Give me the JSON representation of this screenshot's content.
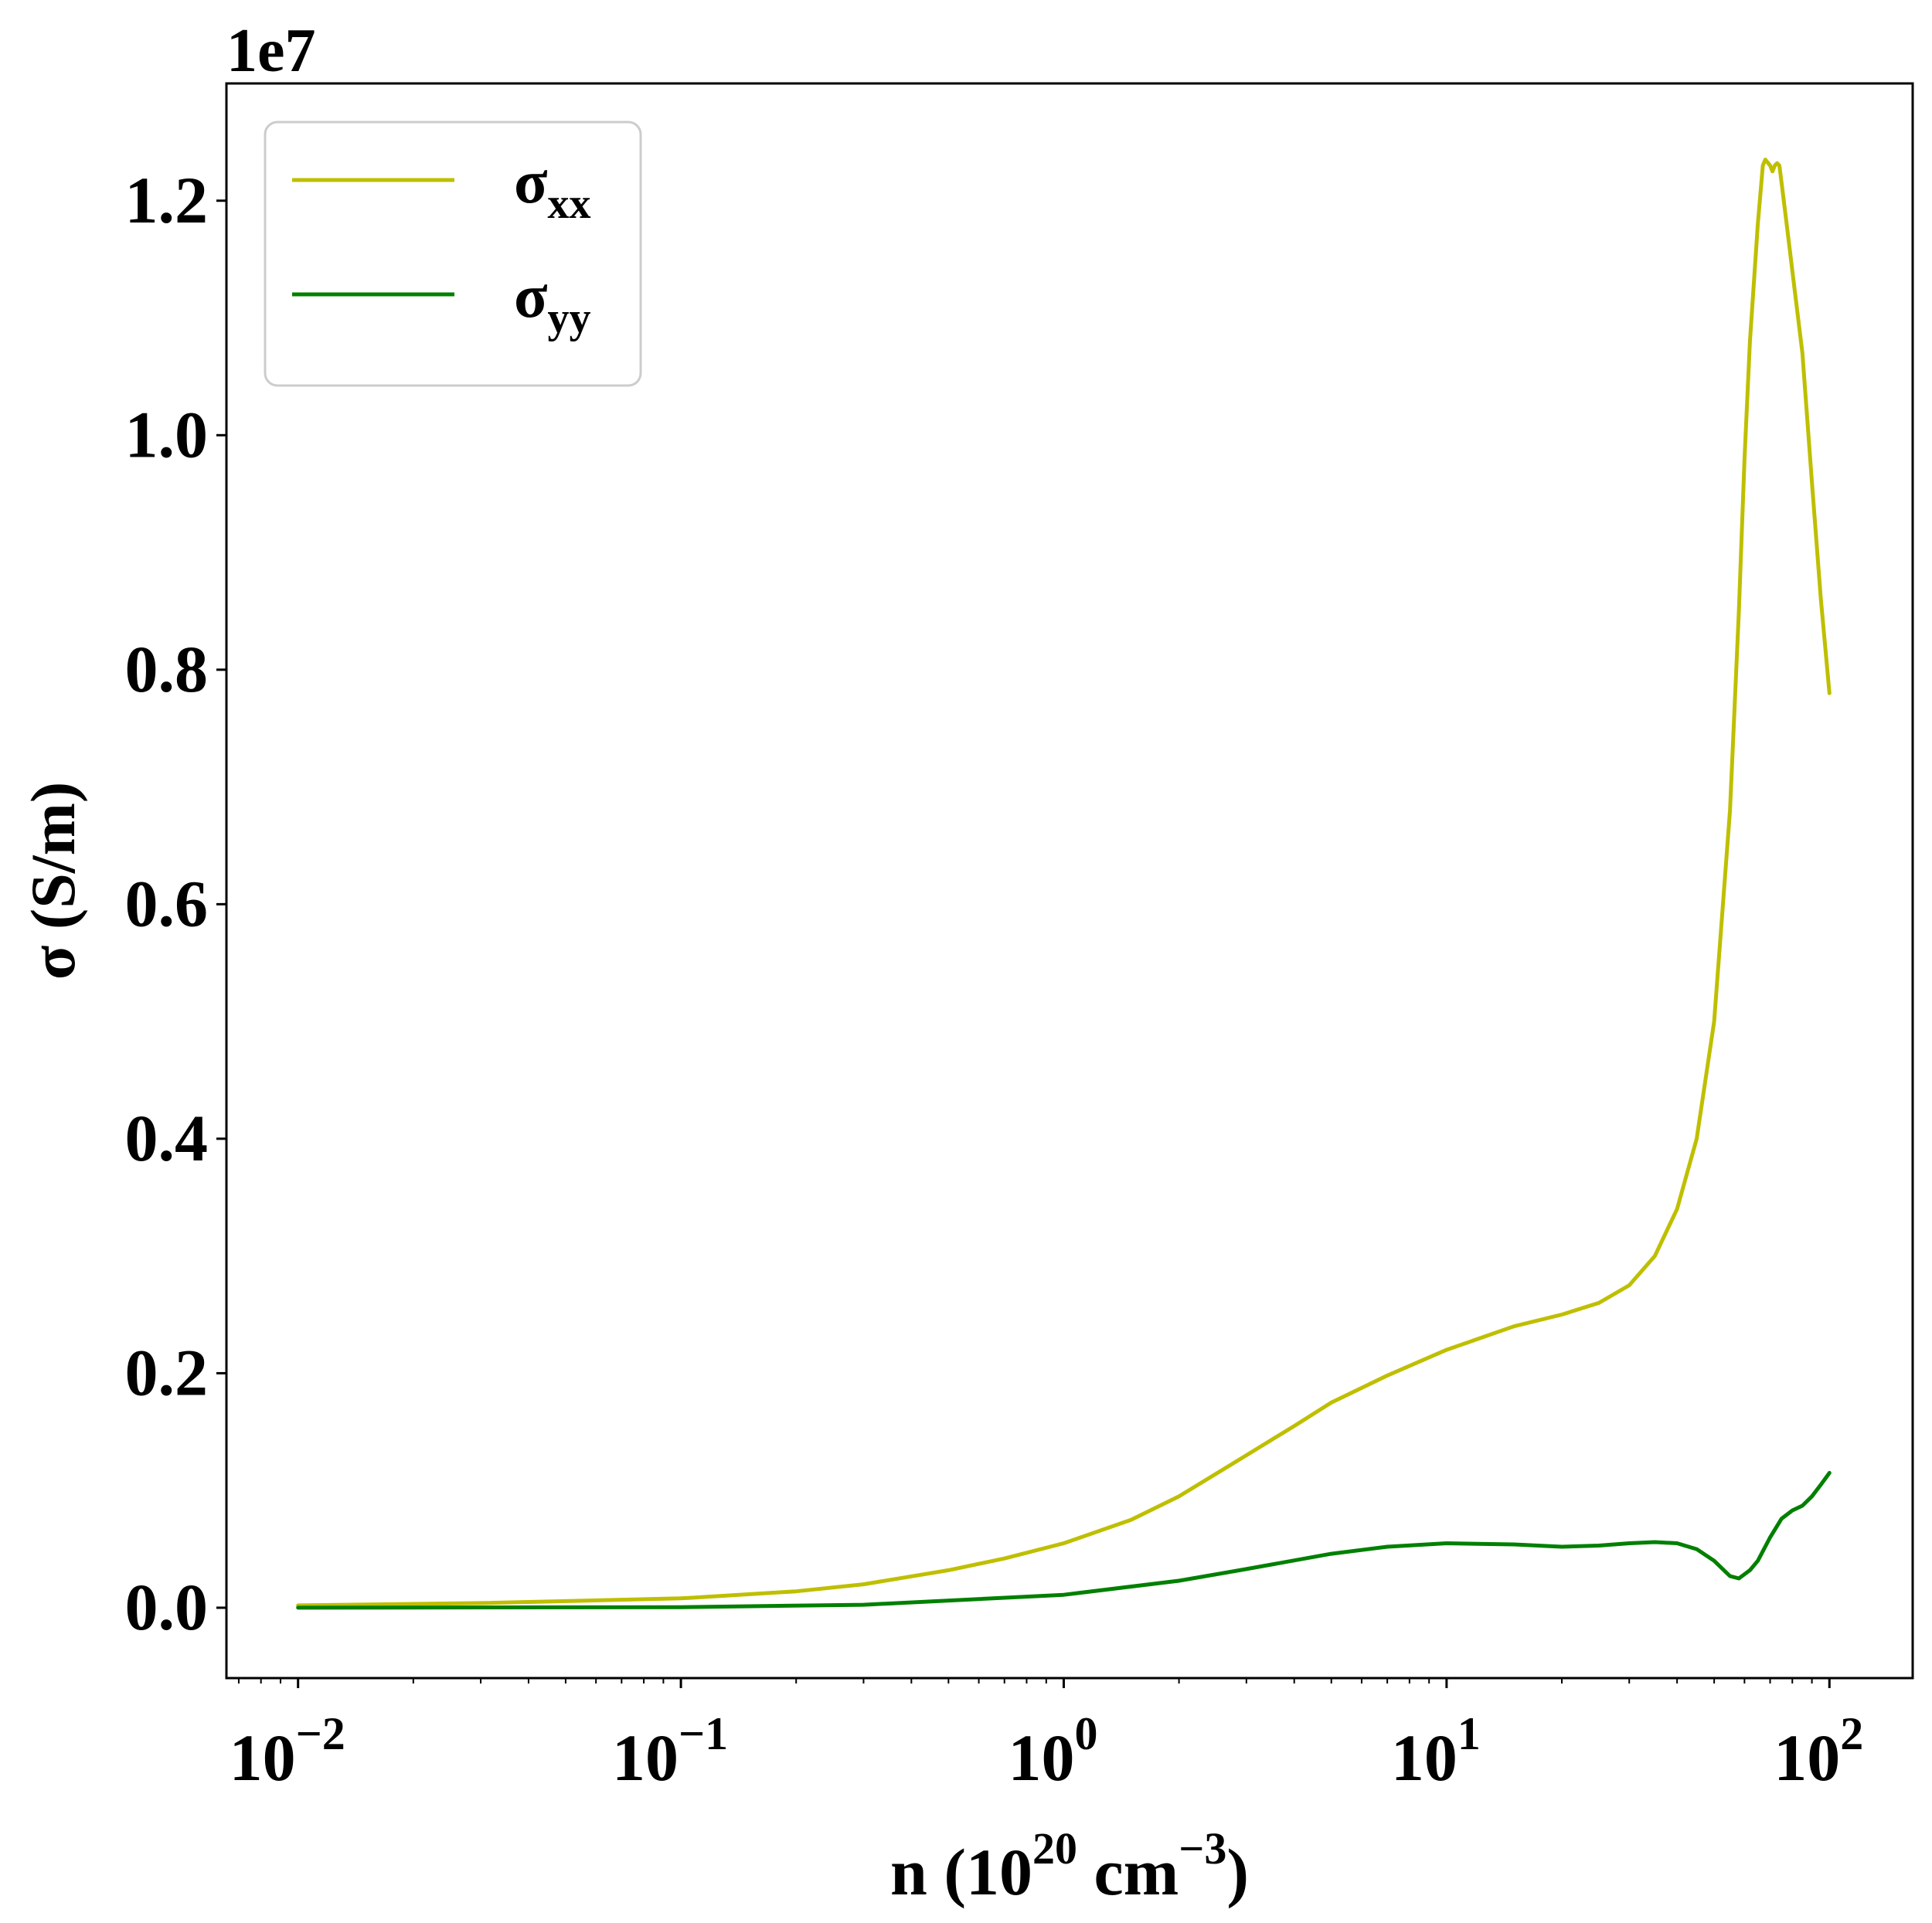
{
  "chart_data": {
    "type": "line",
    "xscale": "log",
    "xlim": [
      0.0065,
      165
    ],
    "ylim": [
      -600000,
      13000000
    ],
    "offset_label": "1e7",
    "xlabel": {
      "base": "n (10",
      "sup1": "20",
      "mid": " cm",
      "sup2": "−3",
      "end": ")"
    },
    "ylabel": "σ (S/m)",
    "x_ticks": [
      {
        "value": 0.01,
        "base": "10",
        "exp": "−2"
      },
      {
        "value": 0.1,
        "base": "10",
        "exp": "−1"
      },
      {
        "value": 1,
        "base": "10",
        "exp": "0"
      },
      {
        "value": 10,
        "base": "10",
        "exp": "1"
      },
      {
        "value": 100,
        "base": "10",
        "exp": "2"
      }
    ],
    "y_ticks": [
      {
        "value": 0,
        "label": "0.0"
      },
      {
        "value": 2000000,
        "label": "0.2"
      },
      {
        "value": 4000000,
        "label": "0.4"
      },
      {
        "value": 6000000,
        "label": "0.6"
      },
      {
        "value": 8000000,
        "label": "0.8"
      },
      {
        "value": 10000000,
        "label": "1.0"
      },
      {
        "value": 12000000,
        "label": "1.2"
      }
    ],
    "legend_position": "top-left",
    "grid": false,
    "series": [
      {
        "name": "σxx",
        "label_main": "σ",
        "label_sub": "xx",
        "color": "#bfbf00",
        "x": [
          0.01,
          0.03,
          0.1,
          0.2,
          0.3,
          0.5,
          0.7,
          1,
          1.5,
          2,
          3,
          4,
          5,
          7,
          10,
          15,
          20,
          25,
          30,
          35,
          40,
          45,
          50,
          55,
          58,
          60,
          62,
          65,
          67,
          68,
          70,
          71,
          72,
          73,
          74,
          75,
          78,
          80,
          85,
          90,
          95,
          100
        ],
        "y": [
          20000,
          40000,
          80000,
          140000,
          200000,
          320000,
          420000,
          550000,
          750000,
          950000,
          1300000,
          1550000,
          1750000,
          1980000,
          2200000,
          2400000,
          2500000,
          2600000,
          2750000,
          3000000,
          3400000,
          4000000,
          5000000,
          6800000,
          8500000,
          9800000,
          10800000,
          11800000,
          12300000,
          12350000,
          12300000,
          12250000,
          12300000,
          12320000,
          12300000,
          12150000,
          11700000,
          11400000,
          10700000,
          9600000,
          8600000,
          7800000
        ]
      },
      {
        "name": "σyy",
        "label_main": "σ",
        "label_sub": "yy",
        "color": "#008000",
        "x": [
          0.01,
          0.1,
          0.3,
          1,
          2,
          3,
          5,
          7,
          10,
          15,
          20,
          25,
          30,
          35,
          40,
          45,
          50,
          55,
          58,
          62,
          65,
          70,
          75,
          80,
          85,
          90,
          95,
          100
        ],
        "y": [
          0,
          5000,
          25000,
          110000,
          230000,
          330000,
          460000,
          520000,
          550000,
          540000,
          520000,
          530000,
          550000,
          560000,
          550000,
          500000,
          400000,
          270000,
          250000,
          320000,
          400000,
          600000,
          760000,
          830000,
          870000,
          950000,
          1050000,
          1150000
        ]
      }
    ]
  }
}
